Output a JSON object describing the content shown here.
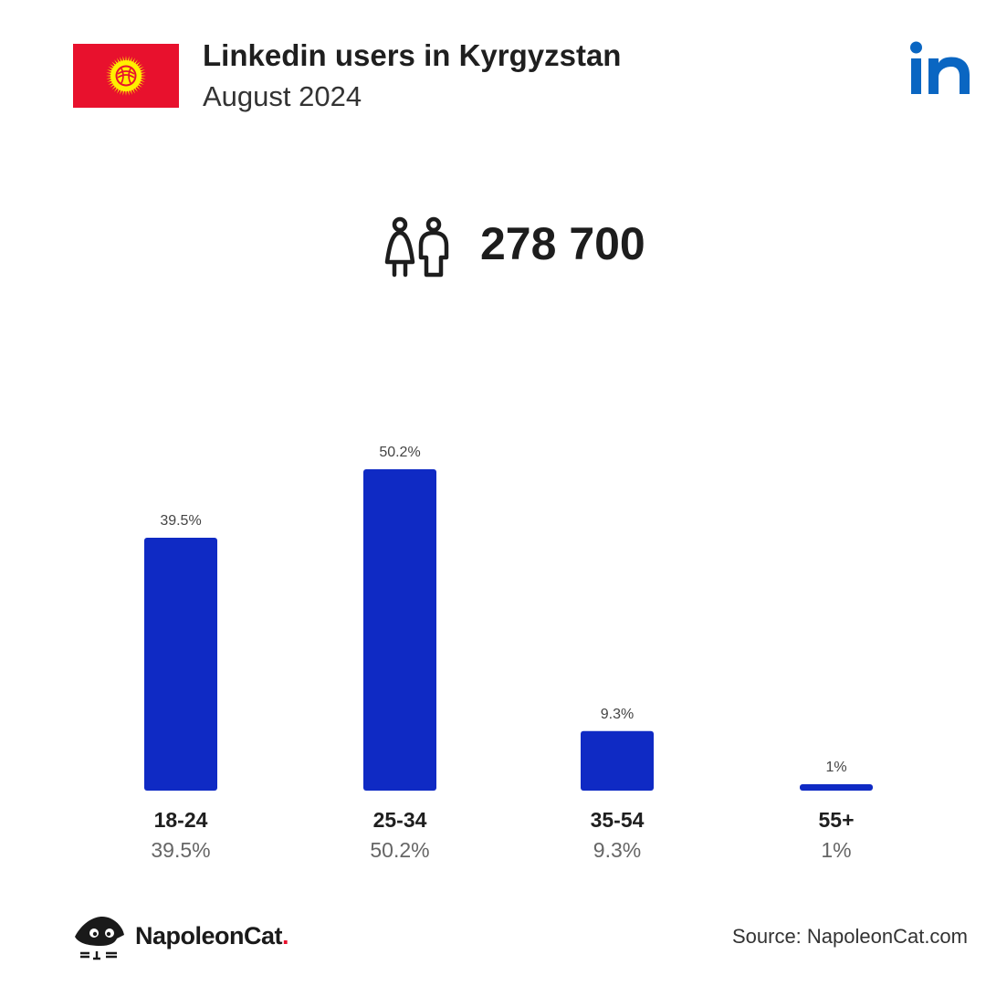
{
  "header": {
    "title": "Linkedin users in Kyrgyzstan",
    "subtitle": "August 2024",
    "flag_icon": "kyrgyzstan-flag",
    "flag_colors": {
      "field": "#e8112d",
      "sun": "#ffef00"
    },
    "platform_icon": "linkedin-icon",
    "platform_color": "#0a66c2"
  },
  "summary": {
    "icon": "users-icon",
    "total_users": "278 700"
  },
  "chart_data": {
    "type": "bar",
    "categories": [
      "18-24",
      "25-34",
      "35-54",
      "55+"
    ],
    "values": [
      39.5,
      50.2,
      9.3,
      1
    ],
    "value_labels": [
      "39.5%",
      "50.2%",
      "9.3%",
      "1%"
    ],
    "bar_color": "#0f2ac4",
    "ylim": [
      0,
      50.2
    ],
    "grid": false,
    "axes_visible": false,
    "legend": "none"
  },
  "footer": {
    "brand_icon": "napoleoncat-logo",
    "brand_name": "NapoleonCat",
    "brand_dot": ".",
    "brand_dot_color": "#e8112d",
    "source": "Source: NapoleonCat.com"
  }
}
